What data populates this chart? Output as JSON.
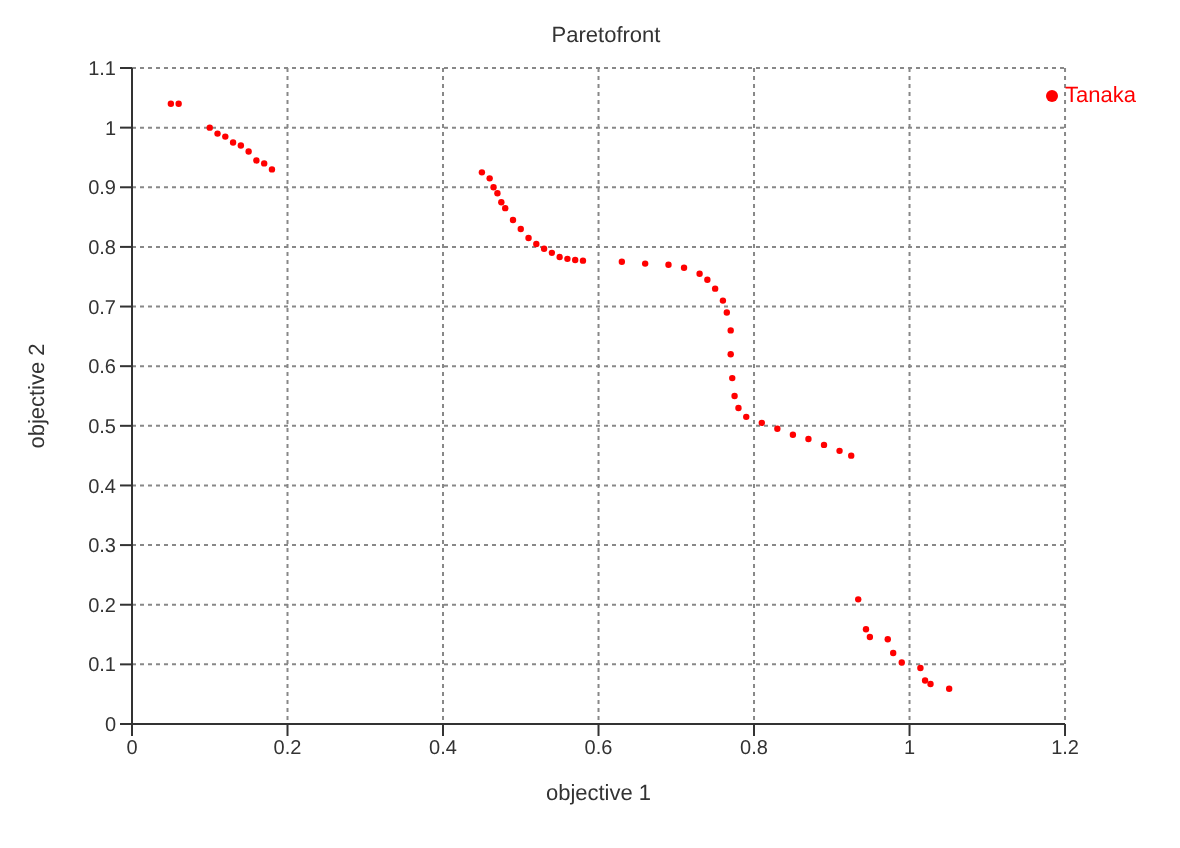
{
  "chart_data": {
    "type": "scatter",
    "title": "Paretofront",
    "xlabel": "objective 1",
    "ylabel": "objective 2",
    "xlim": [
      0,
      1.2
    ],
    "xticks": [
      0,
      0.2,
      0.4,
      0.6,
      0.8,
      1,
      1.2
    ],
    "ylim": [
      0,
      1.1
    ],
    "yticks": [
      0,
      0.1,
      0.2,
      0.3,
      0.4,
      0.5,
      0.6,
      0.7,
      0.8,
      0.9,
      1,
      1.1
    ],
    "grid": true,
    "legend": "top right",
    "marker": "circle",
    "series": [
      {
        "name": "Tanaka",
        "color": "#ff0000",
        "x": [
          0.05,
          0.06,
          0.1,
          0.11,
          0.12,
          0.13,
          0.14,
          0.15,
          0.16,
          0.17,
          0.18,
          0.45,
          0.46,
          0.465,
          0.47,
          0.475,
          0.48,
          0.49,
          0.5,
          0.51,
          0.52,
          0.53,
          0.54,
          0.55,
          0.56,
          0.57,
          0.58,
          0.63,
          0.66,
          0.69,
          0.71,
          0.73,
          0.74,
          0.75,
          0.76,
          0.765,
          0.77,
          0.77,
          0.772,
          0.775,
          0.78,
          0.79,
          0.81,
          0.83,
          0.85,
          0.87,
          0.89,
          0.91,
          0.925,
          0.934,
          0.944,
          0.949,
          0.972,
          0.979,
          0.99,
          1.014,
          1.02,
          1.027,
          1.051
        ],
        "values": [
          1.04,
          1.04,
          1.0,
          0.99,
          0.985,
          0.975,
          0.97,
          0.96,
          0.945,
          0.94,
          0.93,
          0.925,
          0.915,
          0.9,
          0.89,
          0.875,
          0.865,
          0.845,
          0.83,
          0.815,
          0.805,
          0.797,
          0.79,
          0.783,
          0.78,
          0.778,
          0.777,
          0.775,
          0.772,
          0.77,
          0.765,
          0.755,
          0.745,
          0.73,
          0.71,
          0.69,
          0.66,
          0.62,
          0.58,
          0.55,
          0.53,
          0.515,
          0.505,
          0.495,
          0.485,
          0.478,
          0.468,
          0.458,
          0.45,
          0.209,
          0.159,
          0.146,
          0.142,
          0.119,
          0.103,
          0.094,
          0.073,
          0.067,
          0.059
        ]
      }
    ]
  }
}
